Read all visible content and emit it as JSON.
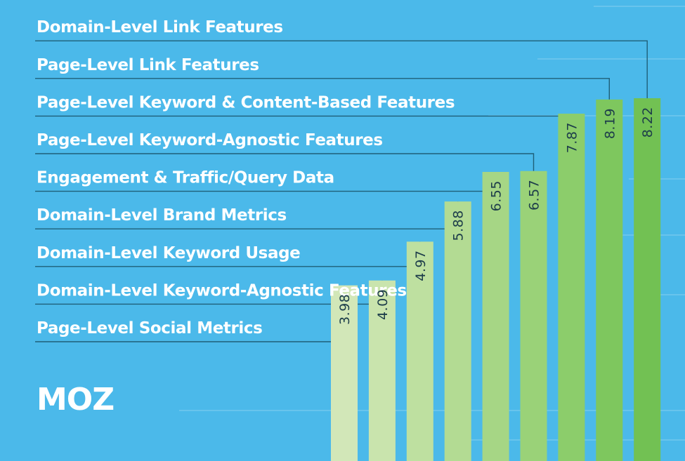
{
  "logo": "MOZ",
  "colors": {
    "background": "#4bb9ea",
    "connector_line": "#1f5f78",
    "bar_text": "#1d3d4a",
    "label_text": "#ffffff",
    "bar_palette": [
      "#d2e7b8",
      "#c9e4ad",
      "#bee0a0",
      "#b3db93",
      "#a6d685",
      "#9ad278",
      "#8ccd6b",
      "#7ec75e",
      "#72c153"
    ]
  },
  "chart_data": {
    "type": "bar",
    "orientation": "vertical",
    "title": "",
    "xlabel": "",
    "ylabel": "",
    "ylim": [
      0,
      10
    ],
    "grid": false,
    "legend": "none",
    "value_label_rotation": -90,
    "categories": [
      "Page-Level Social Metrics",
      "Domain-Level Keyword-Agnostic Features",
      "Domain-Level Keyword Usage",
      "Domain-Level Brand Metrics",
      "Engagement & Traffic/Query Data",
      "Page-Level Keyword-Agnostic Features",
      "Page-Level Keyword & Content-Based Features",
      "Page-Level Link Features",
      "Domain-Level Link Features"
    ],
    "values": [
      3.98,
      4.09,
      4.97,
      5.88,
      6.55,
      6.57,
      7.87,
      8.19,
      8.22
    ],
    "value_labels": [
      "3.98",
      "4.09",
      "4.97",
      "5.88",
      "6.55",
      "6.57",
      "7.87",
      "8.19",
      "8.22"
    ]
  }
}
